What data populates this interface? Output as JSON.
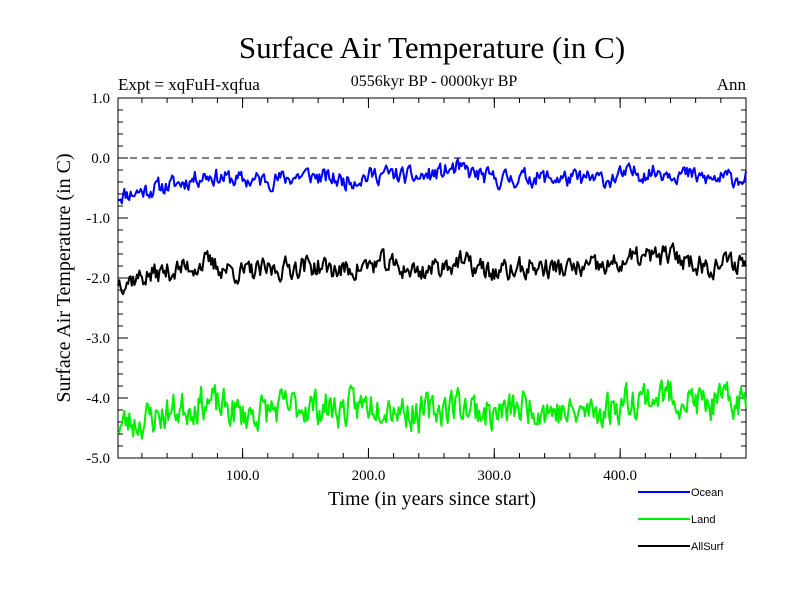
{
  "chart_data": {
    "type": "line",
    "title": "Surface Air Temperature (in C)",
    "subtitle": "0556kyr BP - 0000kyr BP",
    "experiment": "Expt = xqFuH-xqfua",
    "season": "Ann",
    "xlabel": "Time (in years since start)",
    "ylabel": "Surface Air Temperature (in C)",
    "xlim": [
      1,
      500
    ],
    "ylim": [
      -5.0,
      1.0
    ],
    "xticks": [
      100,
      200,
      300,
      400
    ],
    "xtick_labels": [
      "100.0",
      "200.0",
      "300.0",
      "400.0"
    ],
    "yticks": [
      1.0,
      0.0,
      -1.0,
      -2.0,
      -3.0,
      -4.0,
      -5.0
    ],
    "ytick_labels": [
      "1.0",
      "0.0",
      "-1.0",
      "-2.0",
      "-3.0",
      "-4.0",
      "-5.0"
    ],
    "reference_line": 0.0,
    "legend_position": "bottom-right",
    "series": [
      {
        "name": "Ocean",
        "color": "#0000ff",
        "anchors_x": [
          1,
          20,
          50,
          70,
          100,
          130,
          150,
          180,
          210,
          240,
          270,
          300,
          330,
          360,
          390,
          410,
          440,
          470,
          500
        ],
        "anchors_y": [
          -0.62,
          -0.55,
          -0.42,
          -0.28,
          -0.38,
          -0.35,
          -0.28,
          -0.38,
          -0.26,
          -0.33,
          -0.18,
          -0.36,
          -0.32,
          -0.35,
          -0.36,
          -0.25,
          -0.22,
          -0.36,
          -0.32
        ],
        "noise": 0.13,
        "seed": 11
      },
      {
        "name": "Land",
        "color": "#00ee00",
        "anchors_x": [
          1,
          20,
          50,
          70,
          100,
          130,
          150,
          180,
          210,
          240,
          270,
          300,
          330,
          360,
          390,
          410,
          440,
          470,
          500
        ],
        "anchors_y": [
          -4.45,
          -4.38,
          -4.18,
          -4.05,
          -4.28,
          -4.18,
          -4.12,
          -4.2,
          -4.05,
          -4.28,
          -4.08,
          -4.28,
          -4.12,
          -4.28,
          -4.18,
          -4.0,
          -3.95,
          -4.12,
          -4.05
        ],
        "noise": 0.26,
        "seed": 23
      },
      {
        "name": "AllSurf",
        "color": "#000000",
        "anchors_x": [
          1,
          20,
          50,
          70,
          100,
          130,
          150,
          180,
          210,
          240,
          270,
          300,
          330,
          360,
          390,
          410,
          440,
          470,
          500
        ],
        "anchors_y": [
          -2.05,
          -1.98,
          -1.85,
          -1.75,
          -1.92,
          -1.85,
          -1.78,
          -1.88,
          -1.75,
          -1.9,
          -1.72,
          -1.92,
          -1.82,
          -1.85,
          -1.82,
          -1.68,
          -1.62,
          -1.8,
          -1.72
        ],
        "noise": 0.16,
        "seed": 37
      }
    ]
  }
}
